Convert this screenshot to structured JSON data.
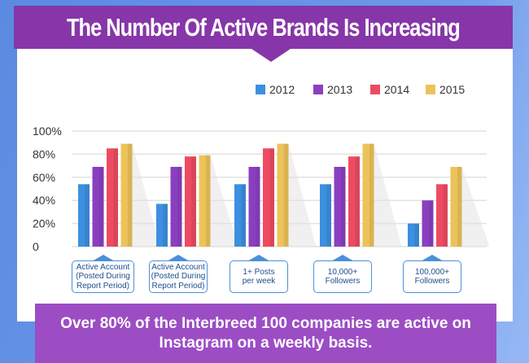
{
  "header": {
    "title": "The Number Of Active Brands Is Increasing"
  },
  "banner": {
    "text": "Over 80% of the Interbreed 100 companies are active on Instagram on a weekly basis."
  },
  "colors": {
    "header_bg": "#8636a8",
    "banner_bg": "#9c4dc4",
    "2012": "#3d8fe0",
    "2013": "#8a3fc0",
    "2014": "#ee4b62",
    "2015": "#ecc35a",
    "category_border": "#4a90d9"
  },
  "chart_data": {
    "type": "bar",
    "title": "The Number Of Active Brands Is Increasing",
    "xlabel": "",
    "ylabel": "",
    "ylim": [
      0,
      100
    ],
    "yticks": [
      "0",
      "20%",
      "40%",
      "60%",
      "80%",
      "100%"
    ],
    "grid": true,
    "legend_position": "top-right",
    "categories": [
      "Active Account\n(Posted During\nReport Period)",
      "Active Account\n(Posted During\nReport Period)",
      "1+ Posts\nper week",
      "10,000+\nFollowers",
      "100,000+\nFollowers"
    ],
    "series": [
      {
        "name": "2012",
        "color": "#3d8fe0",
        "values": [
          54,
          37,
          54,
          54,
          20
        ]
      },
      {
        "name": "2013",
        "color": "#8a3fc0",
        "values": [
          69,
          69,
          69,
          69,
          40
        ]
      },
      {
        "name": "2014",
        "color": "#ee4b62",
        "values": [
          85,
          78,
          85,
          78,
          54
        ]
      },
      {
        "name": "2015",
        "color": "#ecc35a",
        "values": [
          89,
          79,
          89,
          89,
          69
        ]
      }
    ]
  }
}
